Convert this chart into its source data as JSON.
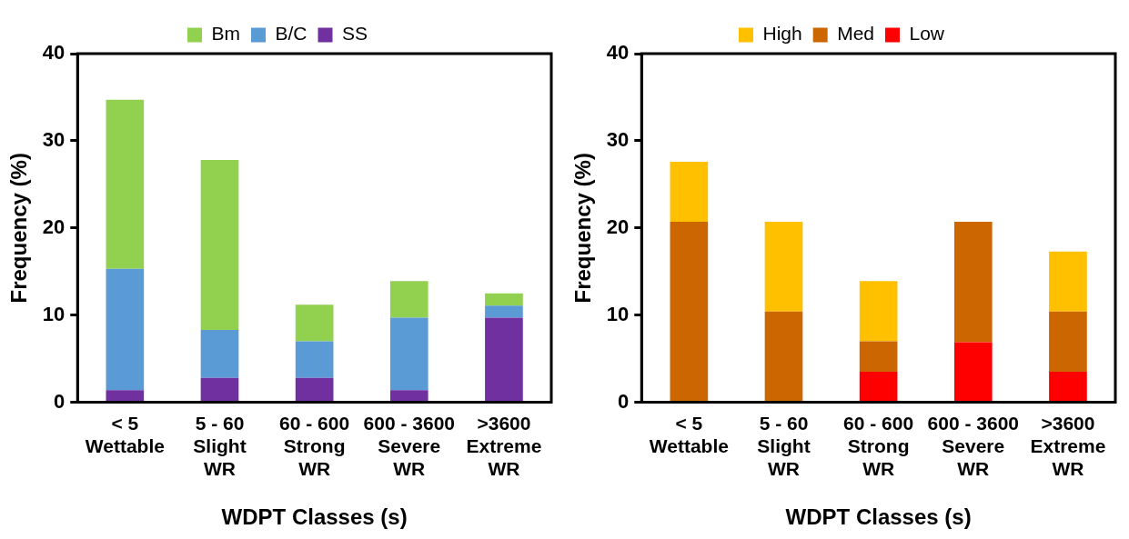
{
  "chart_data": [
    {
      "type": "bar",
      "stacked": true,
      "xlabel": "WDPT Classes (s)",
      "ylabel": "Frequency (%)",
      "categories": [
        "< 5\nWettable",
        "5 - 60\nSlight\nWR",
        "60 - 600\nStrong\nWR",
        "600 - 3600\nSevere\nWR",
        ">3600\nExtreme\nWR"
      ],
      "series": [
        {
          "name": "SS",
          "color": "#7030a0",
          "values": [
            1.4,
            2.8,
            2.8,
            1.4,
            9.7
          ]
        },
        {
          "name": "B/C",
          "color": "#5b9bd5",
          "values": [
            13.9,
            5.5,
            4.2,
            8.3,
            1.4
          ]
        },
        {
          "name": "Bm",
          "color": "#92d050",
          "values": [
            19.4,
            19.5,
            4.2,
            4.2,
            1.4
          ]
        }
      ],
      "ylim": [
        0,
        40
      ],
      "yticks": [
        0,
        10,
        20,
        30,
        40
      ],
      "grid": false,
      "legend": "top"
    },
    {
      "type": "bar",
      "stacked": true,
      "xlabel": "WDPT Classes (s)",
      "ylabel": "Frequency (%)",
      "categories": [
        "< 5\nWettable",
        "5 - 60\nSlight\nWR",
        "60 - 600\nStrong\nWR",
        "600 - 3600\nSevere\nWR",
        ">3600\nExtreme\nWR"
      ],
      "series": [
        {
          "name": "Low",
          "color": "#ff0000",
          "values": [
            0,
            0,
            3.5,
            6.9,
            3.5
          ]
        },
        {
          "name": "Med",
          "color": "#cc6600",
          "values": [
            20.7,
            10.4,
            3.5,
            13.8,
            6.9
          ]
        },
        {
          "name": "High",
          "color": "#ffc000",
          "values": [
            6.9,
            10.3,
            6.9,
            0,
            6.9
          ]
        }
      ],
      "ylim": [
        0,
        40
      ],
      "yticks": [
        0,
        10,
        20,
        30,
        40
      ],
      "grid": false,
      "legend": "top"
    }
  ]
}
